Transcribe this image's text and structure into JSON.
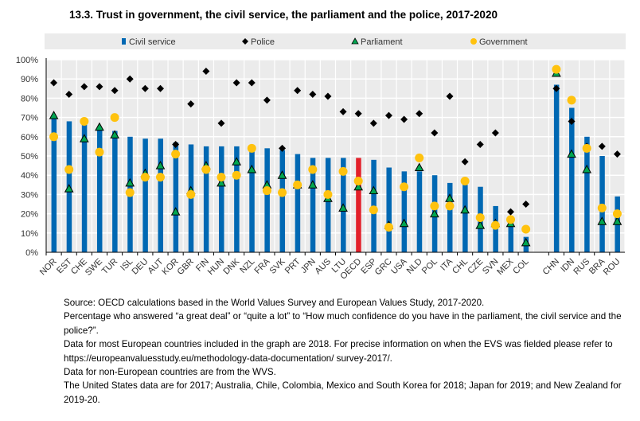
{
  "chart_data": {
    "type": "bar",
    "title": "13.3.   Trust in government, the civil service, the parliament and the police, 2017-2020",
    "ylim": [
      0,
      100
    ],
    "yticks": [
      "0%",
      "10%",
      "20%",
      "30%",
      "40%",
      "50%",
      "60%",
      "70%",
      "80%",
      "90%",
      "100%"
    ],
    "legend_position": "top",
    "categories": [
      "NOR",
      "EST",
      "CHE",
      "SWE",
      "TUR",
      "ISL",
      "DEU",
      "AUT",
      "KOR",
      "GBR",
      "FIN",
      "HUN",
      "DNK",
      "NZL",
      "FRA",
      "SVK",
      "PRT",
      "JPN",
      "AUS",
      "LTU",
      "OECD",
      "ESP",
      "GRC",
      "USA",
      "NLD",
      "POL",
      "ITA",
      "CHL",
      "CZE",
      "SVN",
      "MEX",
      "COL",
      "",
      "CHN",
      "IDN",
      "RUS",
      "BRA",
      "ROU"
    ],
    "highlight": "OECD",
    "series": [
      {
        "name": "Civil service",
        "kind": "bar",
        "color": "#0068B3",
        "values": [
          70,
          68,
          67,
          64,
          63,
          60,
          59,
          59,
          57,
          56,
          55,
          55,
          55,
          54,
          54,
          53,
          51,
          49,
          49,
          49,
          49,
          48,
          44,
          42,
          42,
          40,
          36,
          35,
          34,
          24,
          16,
          8,
          null,
          87,
          75,
          60,
          50,
          29
        ]
      },
      {
        "name": "Police",
        "kind": "diamond",
        "color": "#000000",
        "values": [
          88,
          82,
          86,
          86,
          84,
          90,
          85,
          85,
          56,
          77,
          94,
          67,
          88,
          88,
          79,
          54,
          84,
          82,
          81,
          73,
          72,
          67,
          71,
          69,
          72,
          62,
          81,
          47,
          56,
          62,
          21,
          25,
          null,
          85,
          68,
          55,
          55,
          51
        ]
      },
      {
        "name": "Parliament",
        "kind": "triangle",
        "color": "#00A651",
        "values": [
          71,
          33,
          59,
          65,
          61,
          36,
          41,
          45,
          21,
          32,
          45,
          36,
          47,
          43,
          35,
          40,
          35,
          35,
          28,
          23,
          34,
          32,
          14,
          15,
          44,
          20,
          28,
          22,
          14,
          15,
          15,
          5,
          null,
          93,
          51,
          43,
          16,
          16
        ]
      },
      {
        "name": "Government",
        "kind": "circle",
        "color": "#FFC20E",
        "values": [
          60,
          43,
          68,
          52,
          70,
          31,
          39,
          39,
          51,
          30,
          43,
          39,
          40,
          54,
          32,
          31,
          35,
          43,
          30,
          42,
          37,
          22,
          13,
          34,
          49,
          24,
          24,
          37,
          18,
          14,
          17,
          12,
          null,
          95,
          79,
          54,
          23,
          20
        ]
      }
    ],
    "highlight_color": "#E3202A"
  },
  "notes": [
    "Source: OECD calculations based in the World Values Survey and European Values Study, 2017-2020.",
    "Percentage who answered “a great deal” or “quite a lot” to “How much confidence do you have in the parliament, the civil service and the police?”.",
    " Data for most European countries included in the graph are 2018. For precise information on when the EVS was fielded please refer to https://europeanvaluesstudy.eu/methodology-data-documentation/ survey-2017/.",
    " Data for non-European countries are from the WVS.",
    "The United States data are for 2017; Australia, Chile, Colombia, Mexico and South Korea for 2018; Japan for 2019; and New Zealand for 2019-20."
  ]
}
